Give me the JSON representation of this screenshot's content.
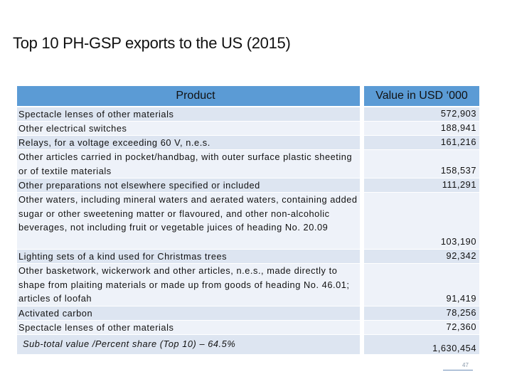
{
  "slide": {
    "title": "Top 10 PH-GSP exports to the US (2015)",
    "page_number": "47"
  },
  "table": {
    "headers": {
      "product": "Product",
      "value": "Value in USD ‘000"
    },
    "rows": [
      {
        "product": "Spectacle lenses of other materials",
        "value": "572,903"
      },
      {
        "product": "Other electrical switches",
        "value": "188,941"
      },
      {
        "product": "Relays, for a voltage exceeding 60 V, n.e.s.",
        "value": "161,216"
      },
      {
        "product": "Other articles carried in pocket/handbag, with outer surface plastic sheeting or of textile materials",
        "value": "158,537"
      },
      {
        "product": "Other preparations not elsewhere specified or included",
        "value": "111,291"
      },
      {
        "product": "Other waters, including mineral waters and aerated waters, containing added sugar or other sweetening matter or flavoured, and other non-alcoholic beverages, not including fruit or vegetable juices of heading No. 20.09",
        "value": "103,190"
      },
      {
        "product": "Lighting sets of a kind used for Christmas trees",
        "value": "92,342"
      },
      {
        "product": "Other basketwork, wickerwork and other articles, n.e.s., made directly to shape from plaiting materials or made up from goods of heading No. 46.01; articles of loofah",
        "value": "91,419"
      },
      {
        "product": "Activated carbon",
        "value": "78,256"
      },
      {
        "product": "Spectacle lenses of other materials",
        "value": "72,360"
      }
    ],
    "subtotal": {
      "label": "Sub-total value /Percent share (Top 10) – 64.5%",
      "value": "1,630,454"
    }
  }
}
